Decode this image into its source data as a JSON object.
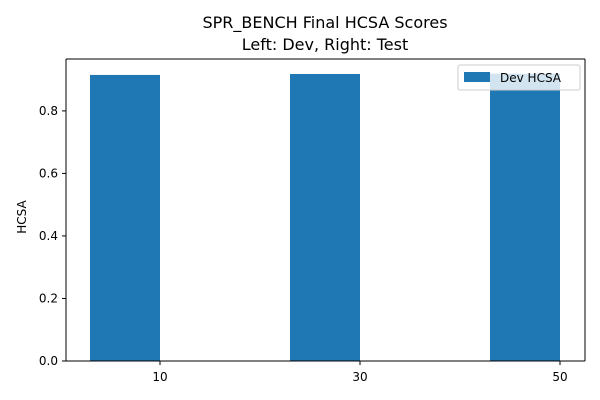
{
  "chart_data": {
    "type": "bar",
    "title": "SPR_BENCH Final HCSA Scores",
    "subtitle": "Left: Dev, Right: Test",
    "xlabel": "",
    "ylabel": "HCSA",
    "categories": [
      "10",
      "30",
      "50"
    ],
    "series": [
      {
        "name": "Dev HCSA",
        "values": [
          0.915,
          0.918,
          0.919
        ],
        "color": "#1f77b4"
      }
    ],
    "ylim": [
      0,
      0.966
    ],
    "yticks": [
      "0.0",
      "0.2",
      "0.4",
      "0.6",
      "0.8"
    ],
    "grid": false,
    "legend": "upper right"
  }
}
